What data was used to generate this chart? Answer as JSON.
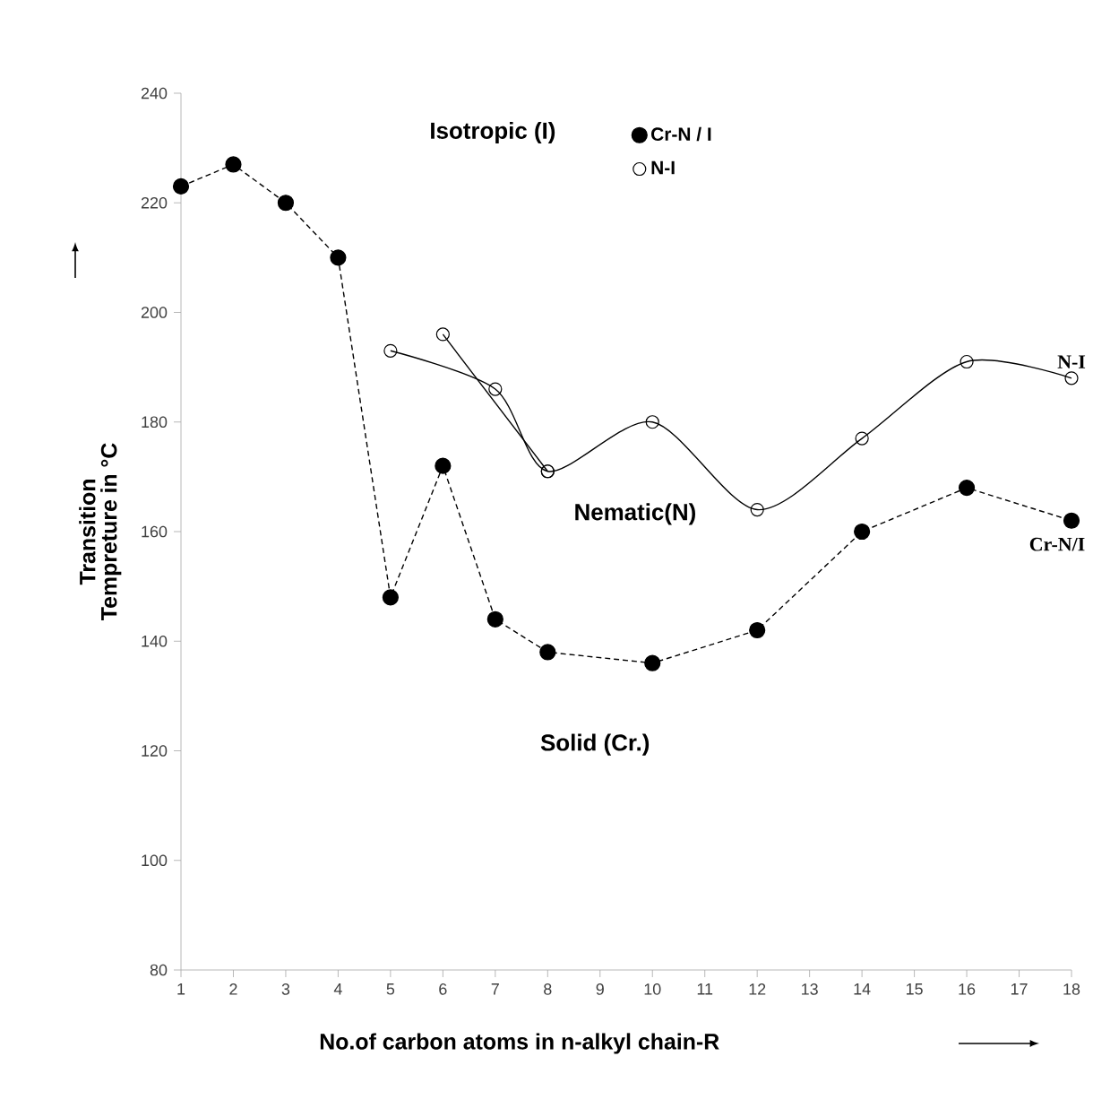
{
  "chart_data": {
    "type": "line",
    "xlabel": "No.of carbon atoms in n-alkyl chain-R",
    "ylabel": "Transition Tempreture in °C",
    "xlim": [
      1,
      18
    ],
    "xticks": [
      1,
      2,
      3,
      4,
      5,
      6,
      7,
      8,
      9,
      10,
      11,
      12,
      13,
      14,
      15,
      16,
      17,
      18
    ],
    "ylim": [
      80,
      240
    ],
    "yticks": [
      80,
      100,
      120,
      140,
      160,
      180,
      200,
      220,
      240
    ],
    "grid": false,
    "legend": "top right",
    "series": [
      {
        "name": "Cr-N / I",
        "color": "#000000",
        "marker": "circle",
        "line_style": "dashed",
        "x": [
          1,
          2,
          3,
          4,
          5,
          6,
          7,
          8,
          10,
          12,
          14,
          16,
          18
        ],
        "values": [
          223,
          227,
          220,
          210,
          148,
          172,
          144,
          138,
          136,
          142,
          160,
          168,
          162
        ]
      },
      {
        "name": "N-I",
        "color": "#000000",
        "marker": "circle",
        "line_style": "solid",
        "x": [
          5,
          7,
          8,
          10,
          12,
          14,
          16,
          18
        ],
        "values": [
          193,
          186,
          171,
          180,
          164,
          177,
          191,
          188
        ]
      },
      {
        "color": "#000000",
        "marker": "circle",
        "line_style": "solid",
        "x": [
          6,
          8
        ],
        "values": [
          196,
          171
        ]
      }
    ],
    "annotations": [
      "Isotropic (I)",
      "Nematic(N)",
      "Solid (Cr.)",
      {
        "text": "N-I",
        "x": 18,
        "y": 188
      },
      {
        "text": "Cr-N/I",
        "x": 18,
        "y": 162
      }
    ]
  }
}
